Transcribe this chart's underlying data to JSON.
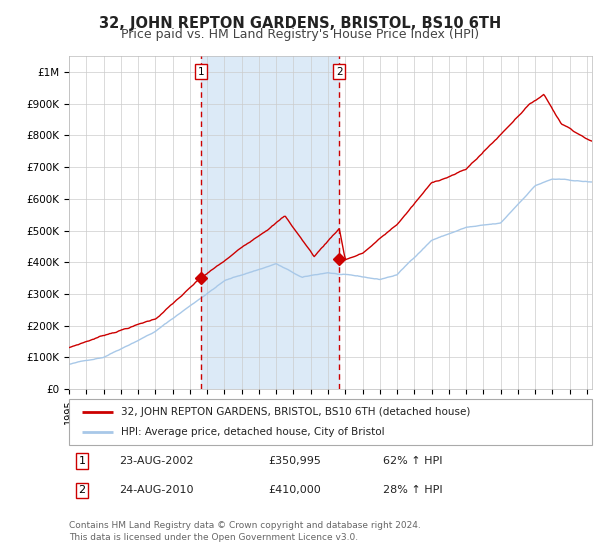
{
  "title": "32, JOHN REPTON GARDENS, BRISTOL, BS10 6TH",
  "subtitle": "Price paid vs. HM Land Registry's House Price Index (HPI)",
  "title_fontsize": 10.5,
  "subtitle_fontsize": 9,
  "bg_color": "#ffffff",
  "plot_bg_color": "#ffffff",
  "grid_color": "#cccccc",
  "hpi_color": "#a8c8e8",
  "house_color": "#cc0000",
  "shade_color": "#dceaf7",
  "vline_color": "#cc0000",
  "ylim": [
    0,
    1050000
  ],
  "yticks": [
    0,
    100000,
    200000,
    300000,
    400000,
    500000,
    600000,
    700000,
    800000,
    900000,
    1000000
  ],
  "ytick_labels": [
    "£0",
    "£100K",
    "£200K",
    "£300K",
    "£400K",
    "£500K",
    "£600K",
    "£700K",
    "£800K",
    "£900K",
    "£1M"
  ],
  "transaction1_x": 2002.65,
  "transaction1_y": 350995,
  "transaction2_x": 2010.65,
  "transaction2_y": 410000,
  "legend_house": "32, JOHN REPTON GARDENS, BRISTOL, BS10 6TH (detached house)",
  "legend_hpi": "HPI: Average price, detached house, City of Bristol",
  "ann1_date": "23-AUG-2002",
  "ann1_price": "£350,995",
  "ann1_hpi": "62% ↑ HPI",
  "ann2_date": "24-AUG-2010",
  "ann2_price": "£410,000",
  "ann2_hpi": "28% ↑ HPI",
  "footer": "Contains HM Land Registry data © Crown copyright and database right 2024.\nThis data is licensed under the Open Government Licence v3.0.",
  "xmin": 1995,
  "xmax": 2025.3
}
